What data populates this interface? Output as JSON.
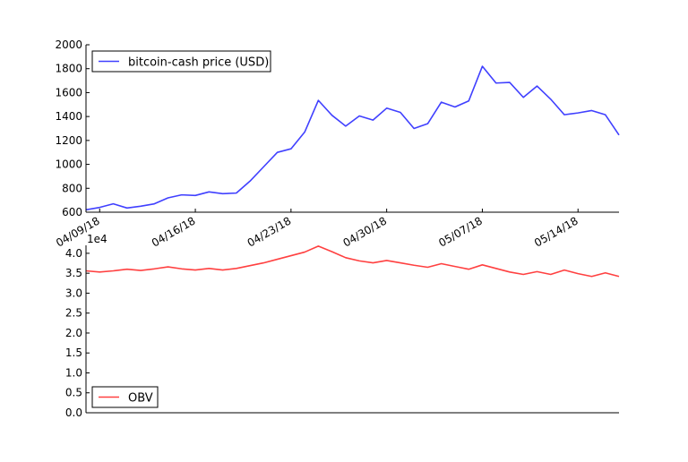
{
  "chart_data": [
    {
      "type": "line",
      "title": "",
      "xlabel": "",
      "ylabel": "",
      "ylim": [
        600,
        2000
      ],
      "yticks": [
        600,
        800,
        1000,
        1200,
        1400,
        1600,
        1800,
        2000
      ],
      "ytick_labels": [
        "600",
        "800",
        "1000",
        "1200",
        "1400",
        "1600",
        "1800",
        "2000"
      ],
      "xtick_labels": [
        "04/09/18",
        "04/16/18",
        "04/23/18",
        "04/30/18",
        "05/07/18",
        "05/14/18"
      ],
      "x": [
        "04/08/18",
        "04/09/18",
        "04/10/18",
        "04/11/18",
        "04/12/18",
        "04/13/18",
        "04/14/18",
        "04/15/18",
        "04/16/18",
        "04/17/18",
        "04/18/18",
        "04/19/18",
        "04/20/18",
        "04/21/18",
        "04/22/18",
        "04/23/18",
        "04/24/18",
        "04/25/18",
        "04/26/18",
        "04/27/18",
        "04/28/18",
        "04/29/18",
        "04/30/18",
        "05/01/18",
        "05/02/18",
        "05/03/18",
        "05/04/18",
        "05/05/18",
        "05/06/18",
        "05/07/18",
        "05/08/18",
        "05/09/18",
        "05/10/18",
        "05/11/18",
        "05/12/18",
        "05/13/18",
        "05/14/18",
        "05/15/18",
        "05/16/18",
        "05/17/18"
      ],
      "series": [
        {
          "name": "bitcoin-cash price (USD)",
          "color": "#4040ff",
          "values": [
            620,
            640,
            670,
            635,
            650,
            670,
            720,
            745,
            740,
            770,
            755,
            760,
            860,
            980,
            1100,
            1130,
            1270,
            1535,
            1410,
            1320,
            1405,
            1370,
            1470,
            1435,
            1300,
            1340,
            1520,
            1480,
            1530,
            1820,
            1680,
            1685,
            1560,
            1655,
            1545,
            1415,
            1430,
            1450,
            1415,
            1245
          ]
        }
      ],
      "legend": "upper left",
      "grid": false
    },
    {
      "type": "line",
      "title": "",
      "xlabel": "",
      "ylabel": "",
      "offset_label": "1e4",
      "ylim": [
        0.0,
        4.2
      ],
      "yticks": [
        0.0,
        0.5,
        1.0,
        1.5,
        2.0,
        2.5,
        3.0,
        3.5,
        4.0
      ],
      "ytick_labels": [
        "0.0",
        "0.5",
        "1.0",
        "1.5",
        "2.0",
        "2.5",
        "3.0",
        "3.5",
        "4.0"
      ],
      "x": [
        "04/08/18",
        "04/09/18",
        "04/10/18",
        "04/11/18",
        "04/12/18",
        "04/13/18",
        "04/14/18",
        "04/15/18",
        "04/16/18",
        "04/17/18",
        "04/18/18",
        "04/19/18",
        "04/20/18",
        "04/21/18",
        "04/22/18",
        "04/23/18",
        "04/24/18",
        "04/25/18",
        "04/26/18",
        "04/27/18",
        "04/28/18",
        "04/29/18",
        "04/30/18",
        "05/01/18",
        "05/02/18",
        "05/03/18",
        "05/04/18",
        "05/05/18",
        "05/06/18",
        "05/07/18",
        "05/08/18",
        "05/09/18",
        "05/10/18",
        "05/11/18",
        "05/12/18",
        "05/13/18",
        "05/14/18",
        "05/15/18",
        "05/16/18",
        "05/17/18"
      ],
      "series": [
        {
          "name": "OBV",
          "color": "#ff4040",
          "values": [
            3.56,
            3.53,
            3.56,
            3.6,
            3.57,
            3.61,
            3.66,
            3.61,
            3.58,
            3.62,
            3.58,
            3.62,
            3.69,
            3.76,
            3.85,
            3.94,
            4.03,
            4.18,
            4.04,
            3.89,
            3.81,
            3.76,
            3.82,
            3.76,
            3.7,
            3.65,
            3.74,
            3.67,
            3.6,
            3.71,
            3.62,
            3.53,
            3.47,
            3.54,
            3.47,
            3.58,
            3.49,
            3.42,
            3.51,
            3.42
          ]
        }
      ],
      "legend": "lower left",
      "grid": false
    }
  ]
}
